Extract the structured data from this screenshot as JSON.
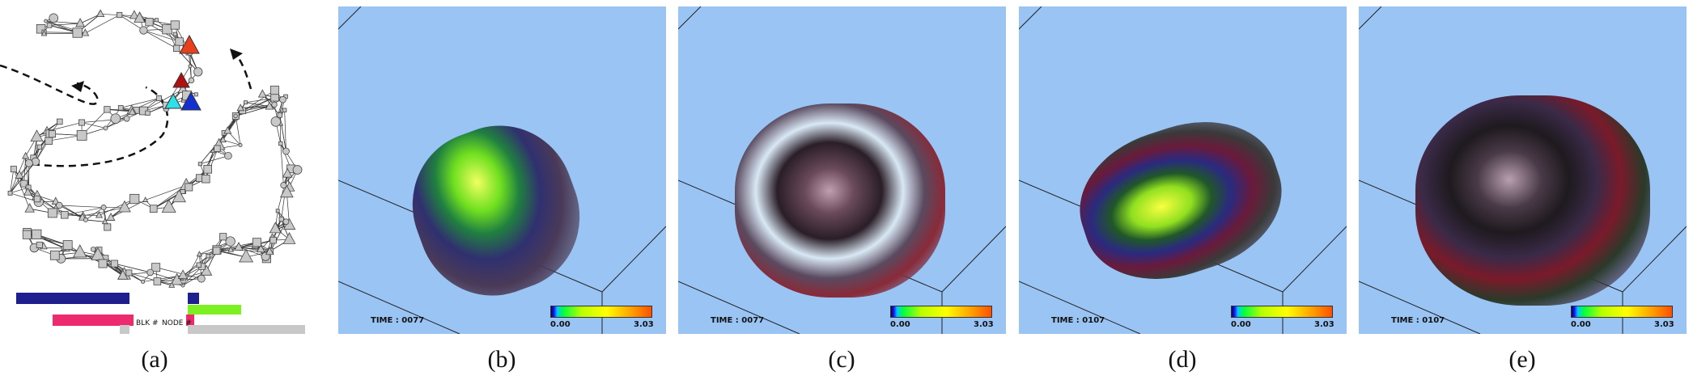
{
  "captions": [
    "(a)",
    "(b)",
    "(c)",
    "(d)",
    "(e)"
  ],
  "graph_legend": {
    "blk_label": "BLK #",
    "node_label": "NODE #"
  },
  "panels": [
    {
      "time_label": "TIME : 0077",
      "colorbar_min": "0.00",
      "colorbar_max": "3.03"
    },
    {
      "time_label": "TIME : 0077",
      "colorbar_min": "0.00",
      "colorbar_max": "3.03"
    },
    {
      "time_label": "TIME : 0107",
      "colorbar_min": "0.00",
      "colorbar_max": "3.03"
    },
    {
      "time_label": "TIME : 0107",
      "colorbar_min": "0.00",
      "colorbar_max": "3.03"
    }
  ],
  "colors": {
    "render_background": "#99c4f4",
    "node_fill": "#c8c8c8",
    "marker_red": "#e8401c",
    "marker_darkred": "#b01010",
    "marker_cyan": "#30e0e8",
    "marker_blue": "#1430d0",
    "legend_blk": "#1f1f8f",
    "legend_node": "#ee2a6e",
    "legend_green": "#7cf020",
    "legend_gray": "#c8c8c8"
  }
}
